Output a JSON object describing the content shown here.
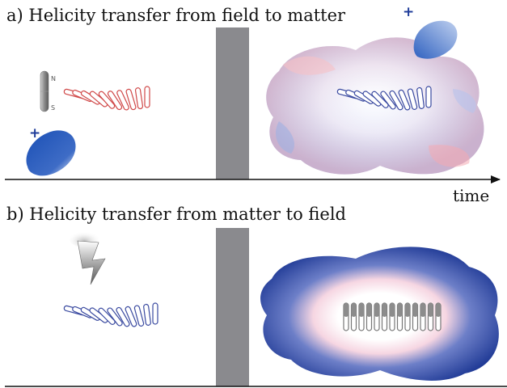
{
  "panel_a": {
    "title": "a) Helicity transfer from field to matter",
    "magnet": {
      "north_label": "N",
      "south_label": "S"
    },
    "plus_sign": "+",
    "field_helix_color": "#d04848",
    "matter_helix_color": "#3a4aa0",
    "cloud_colors": {
      "blue": "#8f9fd8",
      "red": "#f2a0a8"
    }
  },
  "panel_b": {
    "title": "b) Helicity transfer from matter to field",
    "matter_helix_color": "#3a4aa0",
    "aligned_spin_color": "#777777",
    "cloud_colors": {
      "outer": "#1e3c98",
      "inner": "#ffffff",
      "edge": "#ee9aa8"
    }
  },
  "time_axis": {
    "label": "time"
  },
  "divider_color": "#8a8a8e",
  "photon_color": "#1f55b8"
}
